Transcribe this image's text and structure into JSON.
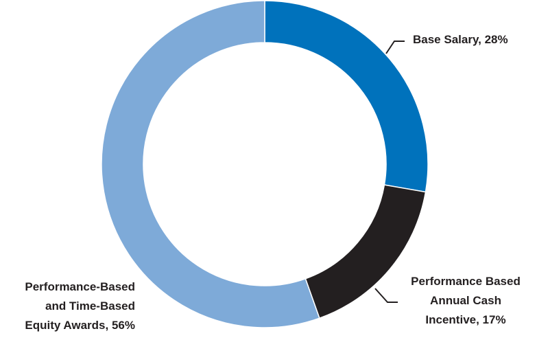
{
  "chart_data": {
    "type": "donut",
    "categories": [
      "Base Salary",
      "Performance Based Annual Cash Incentive",
      "Performance-Based and Time-Based Equity Awards"
    ],
    "values": [
      28,
      17,
      56
    ],
    "value_labels": [
      "Base Salary, 28%",
      "Performance Based Annual Cash Incentive, 17%",
      "Performance-Based and Time-Based Equity Awards, 56%"
    ],
    "colors": [
      "#0072bc",
      "#231f20",
      "#7eaad8"
    ]
  }
}
